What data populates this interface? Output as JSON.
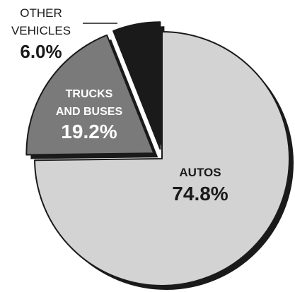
{
  "chart_data": {
    "type": "pie",
    "slices": [
      {
        "label_lines": [
          "AUTOS"
        ],
        "percent_label": "74.8%",
        "value": 74.8,
        "fill": "#d3d3d3",
        "text_color": "#1a1a1a"
      },
      {
        "label_lines": [
          "TRUCKS",
          "AND BUSES"
        ],
        "percent_label": "19.2%",
        "value": 19.2,
        "fill": "#7a7a7a",
        "text_color": "#ffffff"
      },
      {
        "label_lines": [
          "OTHER",
          "VEHICLES"
        ],
        "percent_label": "6.0%",
        "value": 6.0,
        "fill": "#1a1a1a",
        "text_color": "#1a1a1a"
      }
    ]
  }
}
